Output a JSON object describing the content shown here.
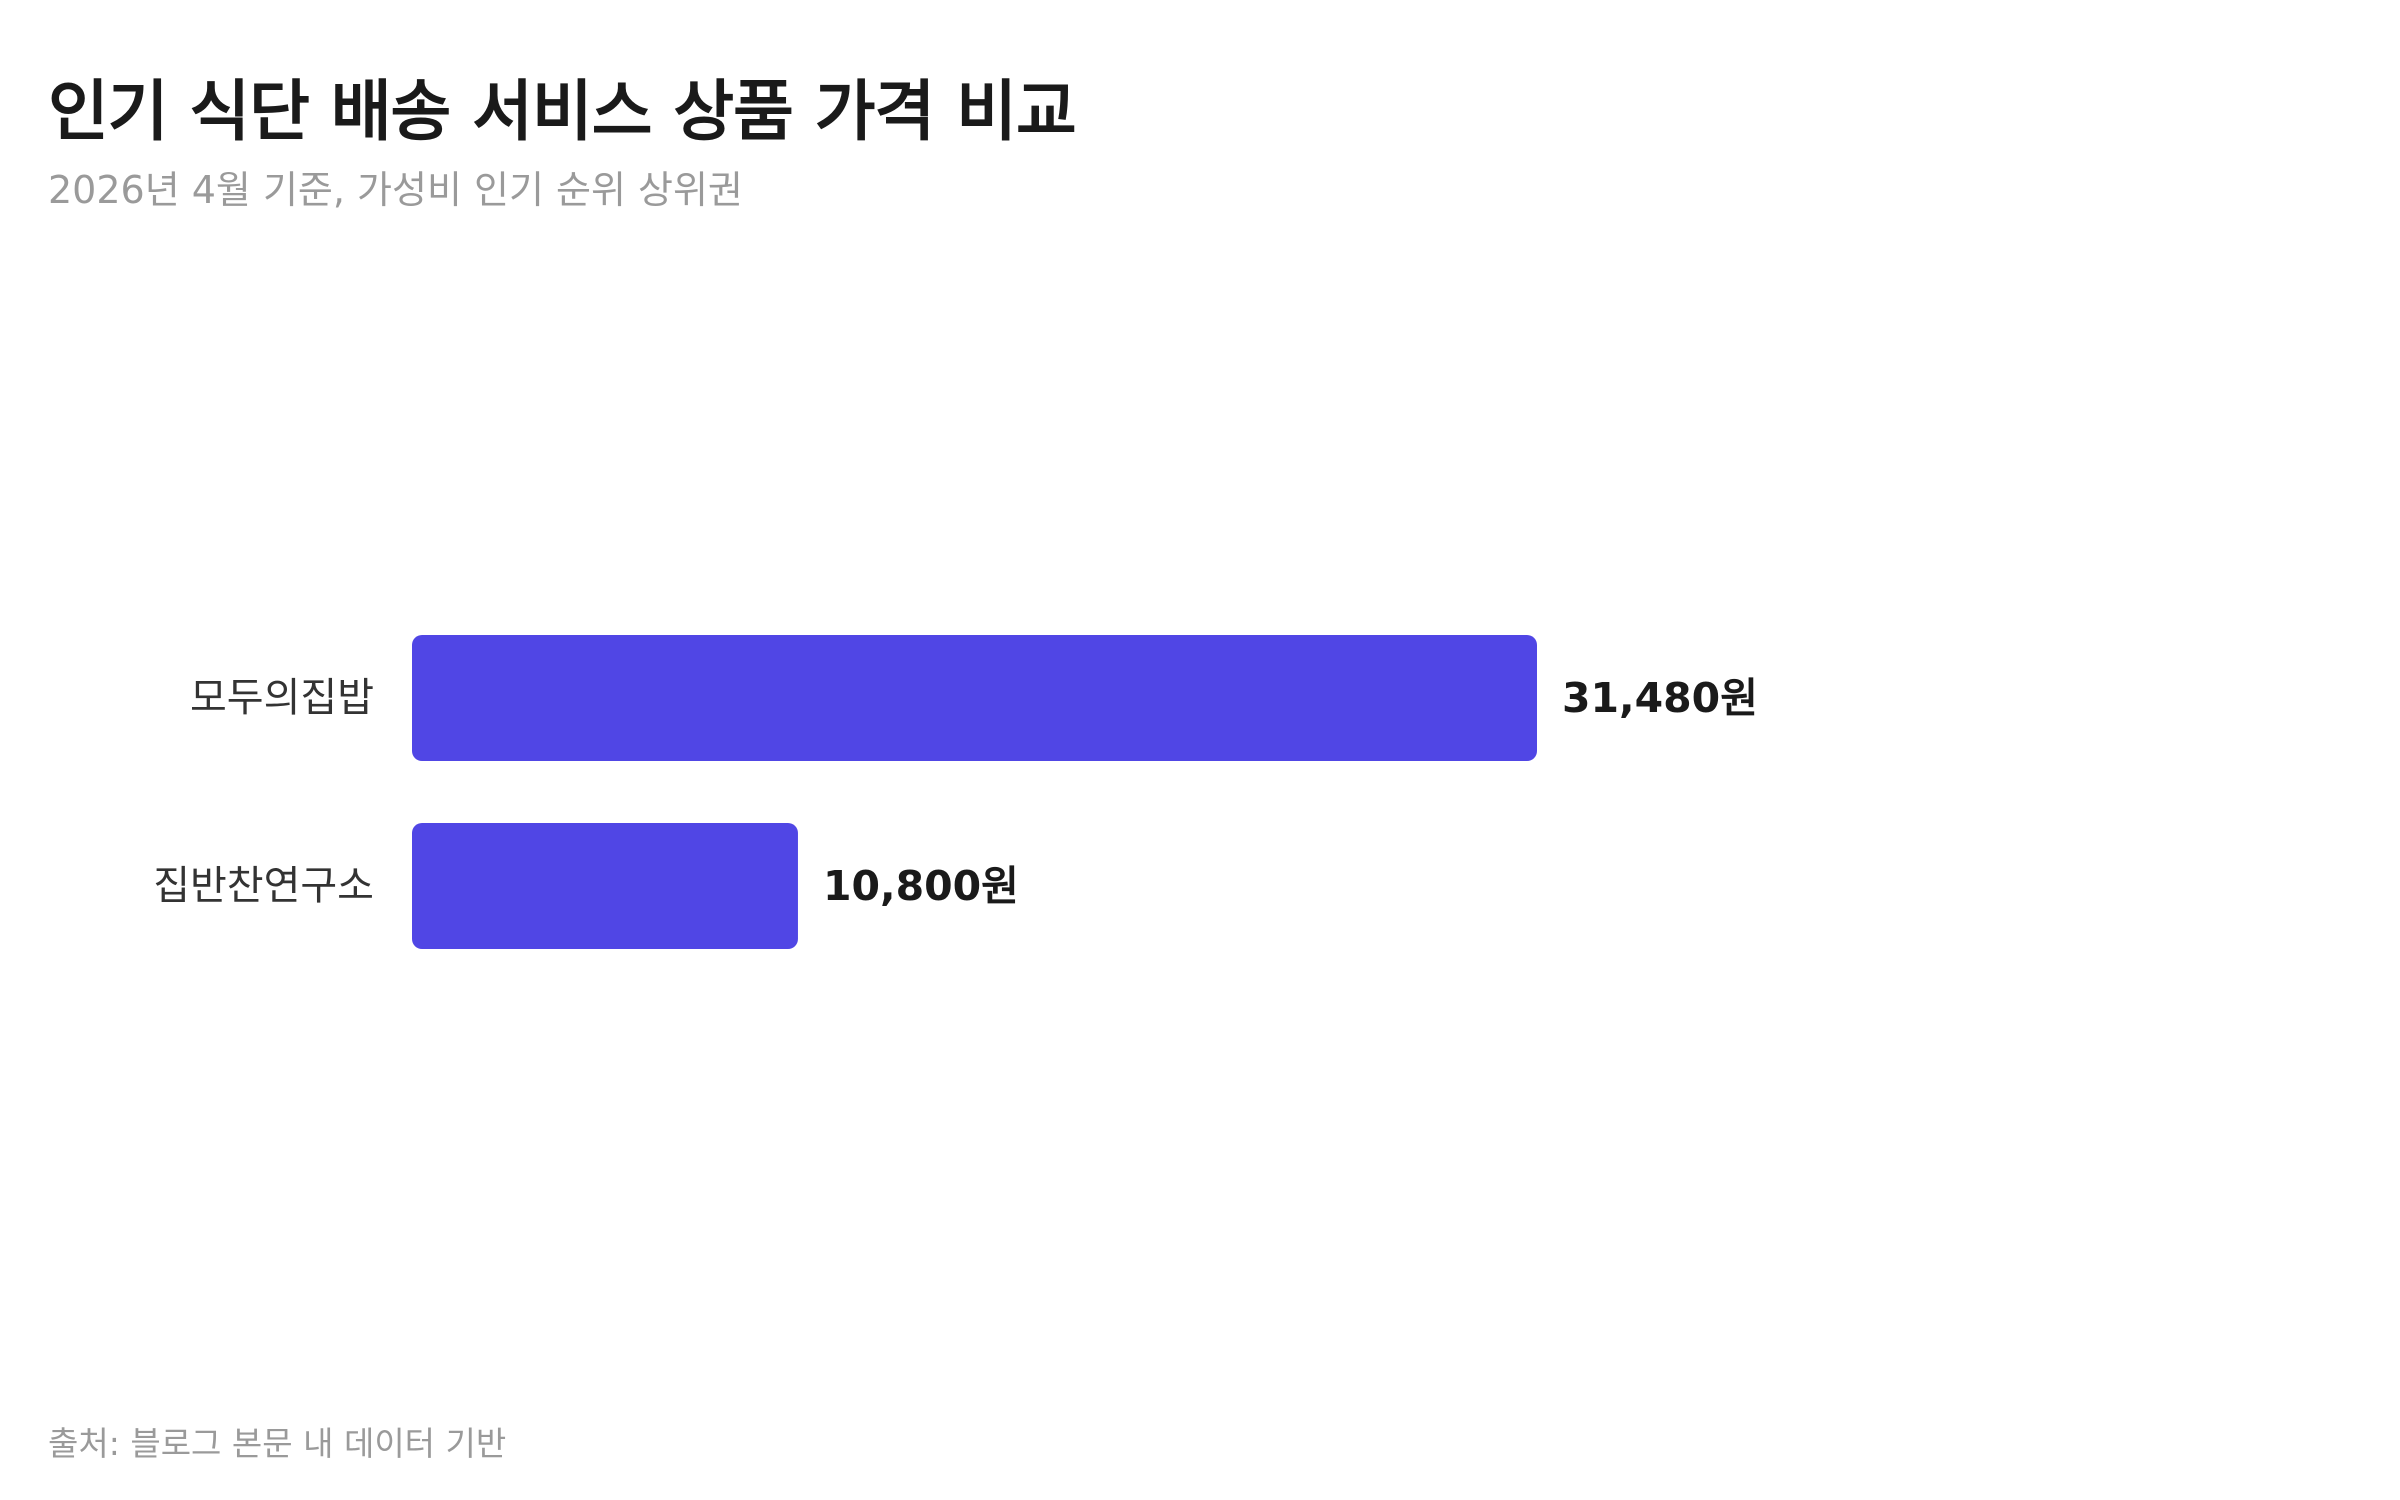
{
  "title": "인기 식단 배송 서비스 상품 가격 비교",
  "subtitle": "2026년 4월 기준, 가성비 인기 순위 상위권",
  "source": "출처: 블로그 본문 내 데이터 기반",
  "chart_data": {
    "type": "bar",
    "orientation": "horizontal",
    "categories": [
      "모두의집밥",
      "집반찬연구소"
    ],
    "values": [
      31480,
      10800
    ],
    "value_labels": [
      "31,480원",
      "10,800원"
    ],
    "title": "인기 식단 배송 서비스 상품 가격 비교",
    "subtitle": "2026년 4월 기준, 가성비 인기 순위 상위권",
    "xlabel": "",
    "ylabel": "",
    "grid": false,
    "legend": "none",
    "bar_color": "#5046e5"
  }
}
